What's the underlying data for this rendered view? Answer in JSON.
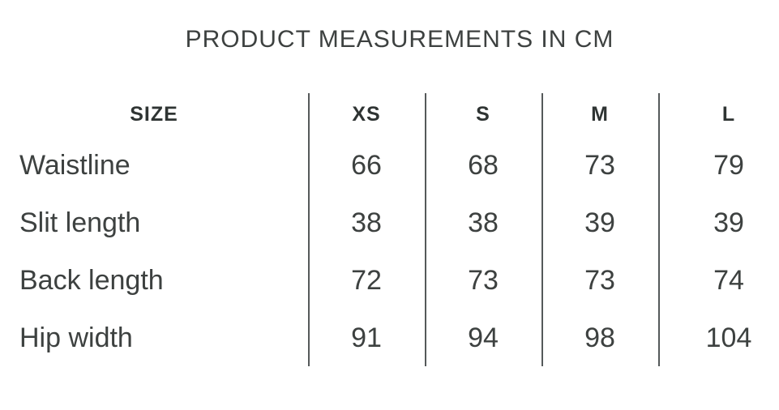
{
  "title": "PRODUCT MEASUREMENTS IN CM",
  "size_chart": {
    "header": {
      "size_label": "SIZE",
      "sizes": [
        "XS",
        "S",
        "M",
        "L"
      ]
    },
    "rows": [
      {
        "label": "Waistline",
        "values": [
          "66",
          "68",
          "73",
          "79"
        ]
      },
      {
        "label": "Slit length",
        "values": [
          "38",
          "38",
          "39",
          "39"
        ]
      },
      {
        "label": "Back length",
        "values": [
          "72",
          "73",
          "73",
          "74"
        ]
      },
      {
        "label": "Hip width",
        "values": [
          "91",
          "94",
          "98",
          "104"
        ]
      }
    ]
  },
  "chart_data": {
    "type": "table",
    "title": "PRODUCT MEASUREMENTS IN CM",
    "columns": [
      "SIZE",
      "XS",
      "S",
      "M",
      "L"
    ],
    "rows": [
      [
        "Waistline",
        66,
        68,
        73,
        79
      ],
      [
        "Slit length",
        38,
        38,
        39,
        39
      ],
      [
        "Back length",
        72,
        73,
        73,
        74
      ],
      [
        "Hip width",
        91,
        94,
        98,
        104
      ]
    ],
    "units": "cm"
  },
  "colors": {
    "background": "#ffffff",
    "body_text": "#3d4140",
    "header_text": "#2f3433",
    "divider": "#55595a"
  }
}
